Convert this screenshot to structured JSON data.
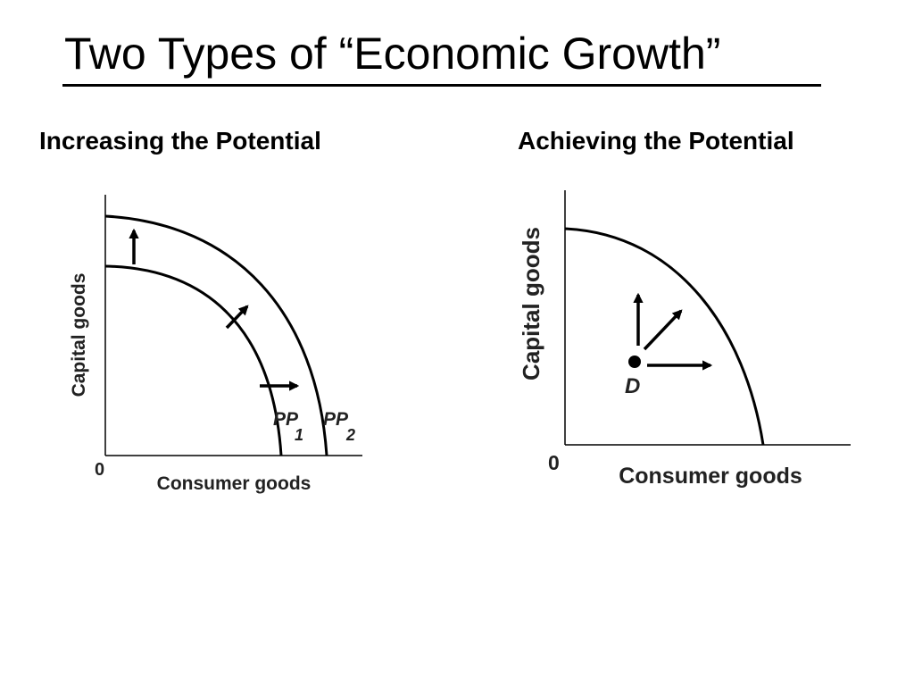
{
  "title": "Two Types of “Economic Growth”",
  "left_panel": {
    "heading": "Increasing the Potential",
    "y_axis_label": "Capital goods",
    "x_axis_label": "Consumer goods",
    "origin_label": "0",
    "curve_labels": [
      {
        "main": "PP",
        "sub": "1"
      },
      {
        "main": "PP",
        "sub": "2"
      }
    ]
  },
  "right_panel": {
    "heading": "Achieving the Potential",
    "y_axis_label": "Capital goods",
    "x_axis_label": "Consumer goods",
    "origin_label": "0",
    "point_label": "D"
  }
}
